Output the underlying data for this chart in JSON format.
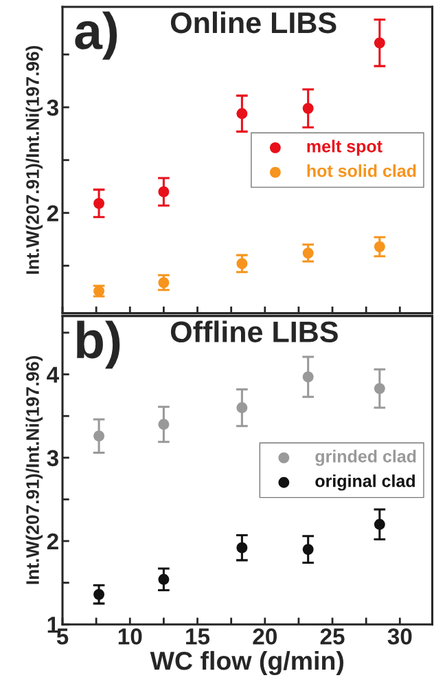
{
  "chart_data": [
    {
      "type": "scatter",
      "title": "Online LIBS",
      "annotations": [
        "a)"
      ],
      "ylabel": "Int.W(207.91)/Int.Ni(197.96)",
      "x": [
        7.7,
        12.5,
        18.3,
        23.2,
        28.5
      ],
      "series": [
        {
          "name": "melt spot",
          "color": "#e8101a",
          "values": [
            2.09,
            2.2,
            2.94,
            2.99,
            3.61
          ],
          "errors": [
            0.13,
            0.13,
            0.17,
            0.18,
            0.22
          ]
        },
        {
          "name": "hot solid clad",
          "color": "#f7941d",
          "values": [
            1.26,
            1.34,
            1.52,
            1.62,
            1.68
          ],
          "errors": [
            0.05,
            0.07,
            0.08,
            0.08,
            0.09
          ]
        }
      ],
      "xlim": [
        5,
        32.4
      ],
      "ylim": [
        1.05,
        3.95
      ],
      "xticks": [
        5,
        {
          "value": 7.5,
          "label": null
        },
        10,
        {
          "value": 12.5,
          "label": null
        },
        15,
        {
          "value": 17.5,
          "label": null
        },
        20,
        {
          "value": 22.5,
          "label": null
        },
        25,
        {
          "value": 27.5,
          "label": null
        },
        30
      ],
      "yticks": [
        {
          "value": 1.5,
          "label": null
        },
        2,
        {
          "value": 2.5,
          "label": null
        },
        3,
        {
          "value": 3.5,
          "label": null
        }
      ],
      "tick_labels": "y",
      "marker": "circle",
      "legend": "right",
      "grid": false
    },
    {
      "type": "scatter",
      "title": "Offline LIBS",
      "annotations": [
        "b)"
      ],
      "ylabel": "Int.W(207.91)/Int.Ni(197.96)",
      "xlabel": "WC flow (g/min)",
      "x": [
        7.7,
        12.5,
        18.3,
        23.2,
        28.5
      ],
      "series": [
        {
          "name": "grinded clad",
          "color": "#999999",
          "values": [
            3.26,
            3.4,
            3.6,
            3.97,
            3.83
          ],
          "errors": [
            0.2,
            0.21,
            0.22,
            0.24,
            0.23
          ]
        },
        {
          "name": "original clad",
          "color": "#111111",
          "values": [
            1.36,
            1.54,
            1.92,
            1.9,
            2.2
          ],
          "errors": [
            0.11,
            0.13,
            0.15,
            0.16,
            0.18
          ]
        }
      ],
      "xlim": [
        5,
        32.4
      ],
      "ylim": [
        1,
        4.7
      ],
      "xticks": [
        5,
        {
          "value": 7.5,
          "label": null
        },
        10,
        {
          "value": 12.5,
          "label": null
        },
        15,
        {
          "value": 17.5,
          "label": null
        },
        20,
        {
          "value": 22.5,
          "label": null
        },
        25,
        {
          "value": 27.5,
          "label": null
        },
        30
      ],
      "yticks": [
        1,
        {
          "value": 1.5,
          "label": null
        },
        2,
        {
          "value": 2.5,
          "label": null
        },
        3,
        {
          "value": 3.5,
          "label": null
        },
        4,
        {
          "value": 4.5,
          "label": null
        }
      ],
      "marker": "circle",
      "legend": "right",
      "grid": false
    }
  ]
}
